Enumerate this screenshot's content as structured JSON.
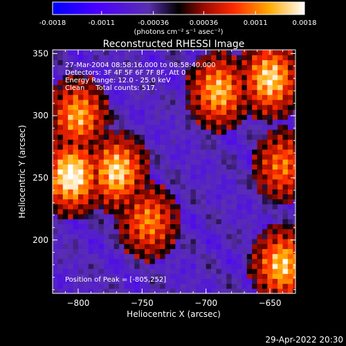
{
  "colorbar": {
    "ticks": [
      "-0.0018",
      "-0.0011",
      "-0.00036",
      "0.00036",
      "0.0011",
      "0.0018"
    ],
    "tick_values": [
      -0.0018,
      -0.0011,
      -0.00036,
      0.00036,
      0.0011,
      0.0018
    ],
    "units": "(photons cm⁻² s⁻¹ asec⁻²)",
    "range": [
      -0.0018,
      0.0018
    ],
    "colors": [
      "#0000ff",
      "#5500ff",
      "#5a2fb0",
      "#000000",
      "#b01000",
      "#ff3000",
      "#ffaa00",
      "#ffffff"
    ]
  },
  "chart_data": {
    "type": "heatmap",
    "title": "Reconstructed RHESSI Image",
    "xlabel": "Heliocentric X (arcsec)",
    "ylabel": "Heliocentric Y (arcsec)",
    "xlim": [
      -820,
      -630
    ],
    "ylim": [
      157,
      353
    ],
    "xticks": [
      -800,
      -750,
      -700,
      -650
    ],
    "xtick_labels": [
      "−800",
      "−750",
      "−700",
      "−650"
    ],
    "yticks": [
      200,
      250,
      300,
      350
    ],
    "ytick_labels": [
      "200",
      "250",
      "300",
      "350"
    ],
    "grid": false,
    "legend": "none",
    "peak": [
      -805,
      252
    ],
    "bright_regions": [
      {
        "x": -805,
        "y": 252,
        "relative_intensity": 1.0
      },
      {
        "x": -770,
        "y": 255,
        "relative_intensity": 0.85
      },
      {
        "x": -800,
        "y": 300,
        "relative_intensity": 0.7
      },
      {
        "x": -690,
        "y": 320,
        "relative_intensity": 0.75
      },
      {
        "x": -650,
        "y": 330,
        "relative_intensity": 0.85
      },
      {
        "x": -640,
        "y": 180,
        "relative_intensity": 0.8
      },
      {
        "x": -745,
        "y": 215,
        "relative_intensity": 0.6
      },
      {
        "x": -640,
        "y": 260,
        "relative_intensity": 0.55
      }
    ],
    "annotations": [
      "27-Mar-2004 08:58:16.000 to 08:58:40.000",
      "Detectors: 3F 4F 5F 6F 7F 8F, Att 0",
      "Energy Range: 12.0 - 25.0 keV",
      "Clean     Total counts: 517."
    ],
    "peak_label": "Position of Peak = [-805,252]"
  },
  "footer": {
    "timestamp": "29-Apr-2022 20:30"
  }
}
